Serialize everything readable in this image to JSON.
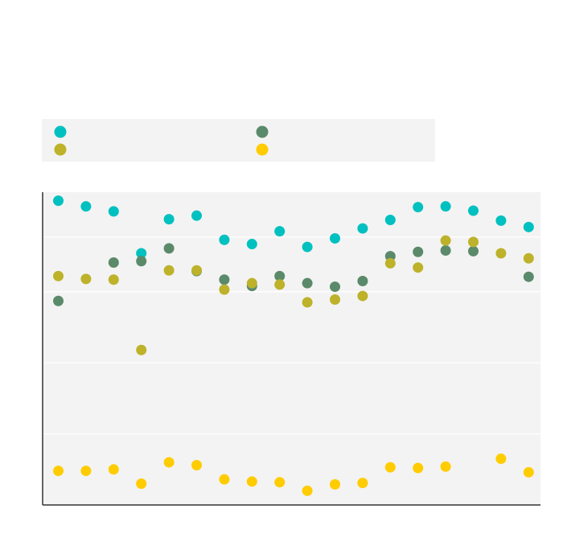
{
  "chart_data": {
    "type": "scatter",
    "title": "",
    "xlabel": "",
    "ylabel": "",
    "legend": {
      "placement": "top"
    },
    "grid": true,
    "x": [
      1,
      2,
      3,
      4,
      5,
      6,
      7,
      8,
      9,
      10,
      11,
      12,
      13,
      14,
      15,
      16,
      17,
      18
    ],
    "ylim": [
      0,
      44
    ],
    "series": [
      {
        "color": "#00c0c0",
        "values": [
          42.8,
          42.0,
          41.3,
          35.4,
          40.2,
          40.7,
          37.3,
          36.7,
          38.5,
          36.3,
          37.5,
          38.9,
          40.1,
          41.9,
          42.0,
          41.4,
          40.0,
          39.1
        ]
      },
      {
        "color": "#5a8a6a",
        "values": [
          28.7,
          null,
          34.1,
          34.3,
          36.1,
          32.9,
          31.7,
          30.8,
          32.2,
          31.2,
          30.7,
          31.5,
          35.0,
          35.6,
          35.8,
          35.7,
          null,
          32.1
        ]
      },
      {
        "color": "#bdb22a",
        "values": [
          32.2,
          31.8,
          31.7,
          21.8,
          33.0,
          33.0,
          30.3,
          31.2,
          31.0,
          28.5,
          28.9,
          29.4,
          34.0,
          33.4,
          37.2,
          37.0,
          35.4,
          34.7
        ]
      },
      {
        "color": "#ffcc00",
        "values": [
          4.8,
          4.8,
          5.0,
          3.0,
          6.0,
          5.6,
          3.6,
          3.3,
          3.2,
          2.0,
          2.9,
          3.1,
          5.3,
          5.2,
          5.4,
          null,
          6.5,
          4.6
        ]
      }
    ]
  }
}
